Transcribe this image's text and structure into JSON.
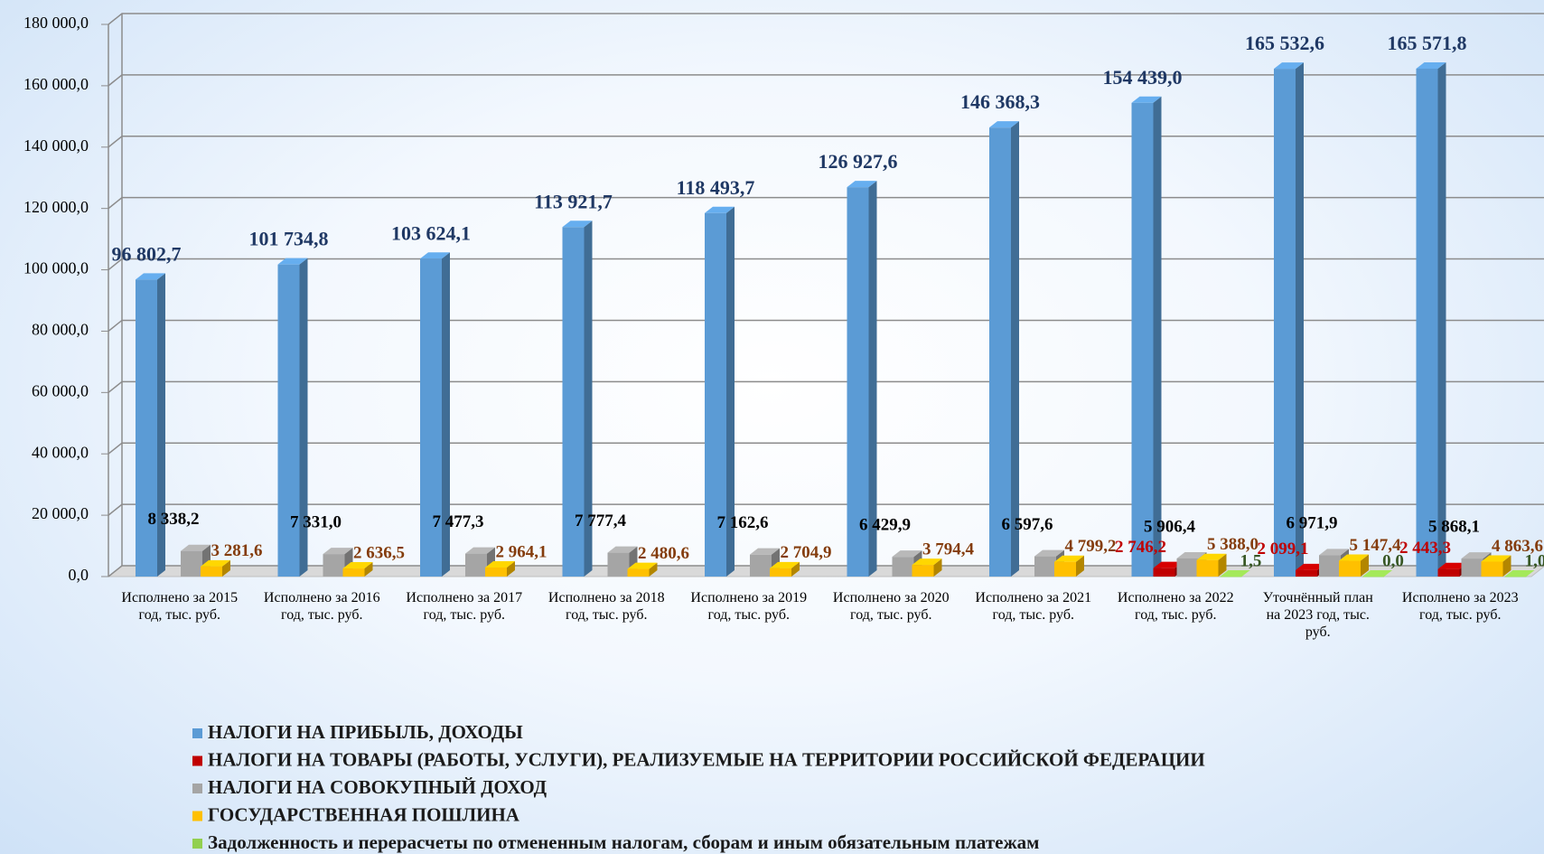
{
  "chart_data": {
    "type": "bar3d",
    "categories": [
      "Исполнено за 2015 год, тыс. руб.",
      "Исполнено за 2016 год, тыс. руб.",
      "Исполнено за 2017 год, тыс. руб.",
      "Исполнено за 2018 год, тыс. руб.",
      "Исполнено за 2019 год, тыс. руб.",
      "Исполнено за 2020 год, тыс. руб.",
      "Исполнено за 2021 год, тыс. руб.",
      "Исполнено за 2022 год, тыс. руб.",
      "Уточнённый план на 2023 год, тыс. руб.",
      "Исполнено за 2023 год, тыс. руб."
    ],
    "series": [
      {
        "name": "НАЛОГИ НА ПРИБЫЛЬ, ДОХОДЫ",
        "color": "#5b9bd5",
        "label_color": "#1f3864",
        "values": [
          96802.7,
          101734.8,
          103624.1,
          113921.7,
          118493.7,
          126927.6,
          146368.3,
          154439.0,
          165532.6,
          165571.8
        ],
        "value_labels": [
          "96 802,7",
          "101 734,8",
          "103 624,1",
          "113 921,7",
          "118 493,7",
          "126 927,6",
          "146 368,3",
          "154 439,0",
          "165 532,6",
          "165 571,8"
        ]
      },
      {
        "name": "НАЛОГИ НА ТОВАРЫ (РАБОТЫ, УСЛУГИ), РЕАЛИЗУЕМЫЕ НА ТЕРРИТОРИИ РОССИЙСКОЙ ФЕДЕРАЦИИ",
        "color": "#c00000",
        "label_color": "#c00000",
        "values": [
          null,
          null,
          null,
          null,
          null,
          null,
          null,
          2746.2,
          2099.1,
          2443.3
        ],
        "value_labels": [
          null,
          null,
          null,
          null,
          null,
          null,
          null,
          "2 746,2",
          "2 099,1",
          "2 443,3"
        ]
      },
      {
        "name": "НАЛОГИ НА СОВОКУПНЫЙ ДОХОД",
        "color": "#a5a5a5",
        "label_color": "#000000",
        "values": [
          8338.2,
          7331.0,
          7477.3,
          7777.4,
          7162.6,
          6429.9,
          6597.6,
          5906.4,
          6971.9,
          5868.1
        ],
        "value_labels": [
          "8 338,2",
          "7 331,0",
          "7 477,3",
          "7 777,4",
          "7 162,6",
          "6 429,9",
          "6 597,6",
          "5 906,4",
          "6 971,9",
          "5 868,1"
        ]
      },
      {
        "name": "ГОСУДАРСТВЕННАЯ ПОШЛИНА",
        "color": "#ffc000",
        "label_color": "#843c0c",
        "values": [
          3281.6,
          2636.5,
          2964.1,
          2480.6,
          2704.9,
          3794.4,
          4799.2,
          5388.0,
          5147.4,
          4863.6
        ],
        "value_labels": [
          "3 281,6",
          "2 636,5",
          "2 964,1",
          "2 480,6",
          "2 704,9",
          "3 794,4",
          "4 799,2",
          "5 388,0",
          "5 147,4",
          "4 863,6"
        ]
      },
      {
        "name": "Задолженность и перерасчеты по отмененным налогам, сборам и иным обязательным платежам",
        "color": "#92d050",
        "label_color": "#375623",
        "values": [
          null,
          null,
          null,
          null,
          null,
          null,
          null,
          1.5,
          0.0,
          1.0
        ],
        "value_labels": [
          null,
          null,
          null,
          null,
          null,
          null,
          null,
          "1,5",
          "0,0",
          "1,0"
        ]
      }
    ],
    "ylim": [
      0,
      180000
    ],
    "yticks": [
      {
        "value": 0,
        "label": "0,0"
      },
      {
        "value": 20000,
        "label": "20 000,0"
      },
      {
        "value": 40000,
        "label": "40 000,0"
      },
      {
        "value": 60000,
        "label": "60 000,0"
      },
      {
        "value": 80000,
        "label": "80 000,0"
      },
      {
        "value": 100000,
        "label": "100 000,0"
      },
      {
        "value": 120000,
        "label": "120 000,0"
      },
      {
        "value": 140000,
        "label": "140 000,0"
      },
      {
        "value": 160000,
        "label": "160 000,0"
      },
      {
        "value": 180000,
        "label": "180 000,0"
      }
    ],
    "grid": true,
    "legend": "bottom"
  }
}
